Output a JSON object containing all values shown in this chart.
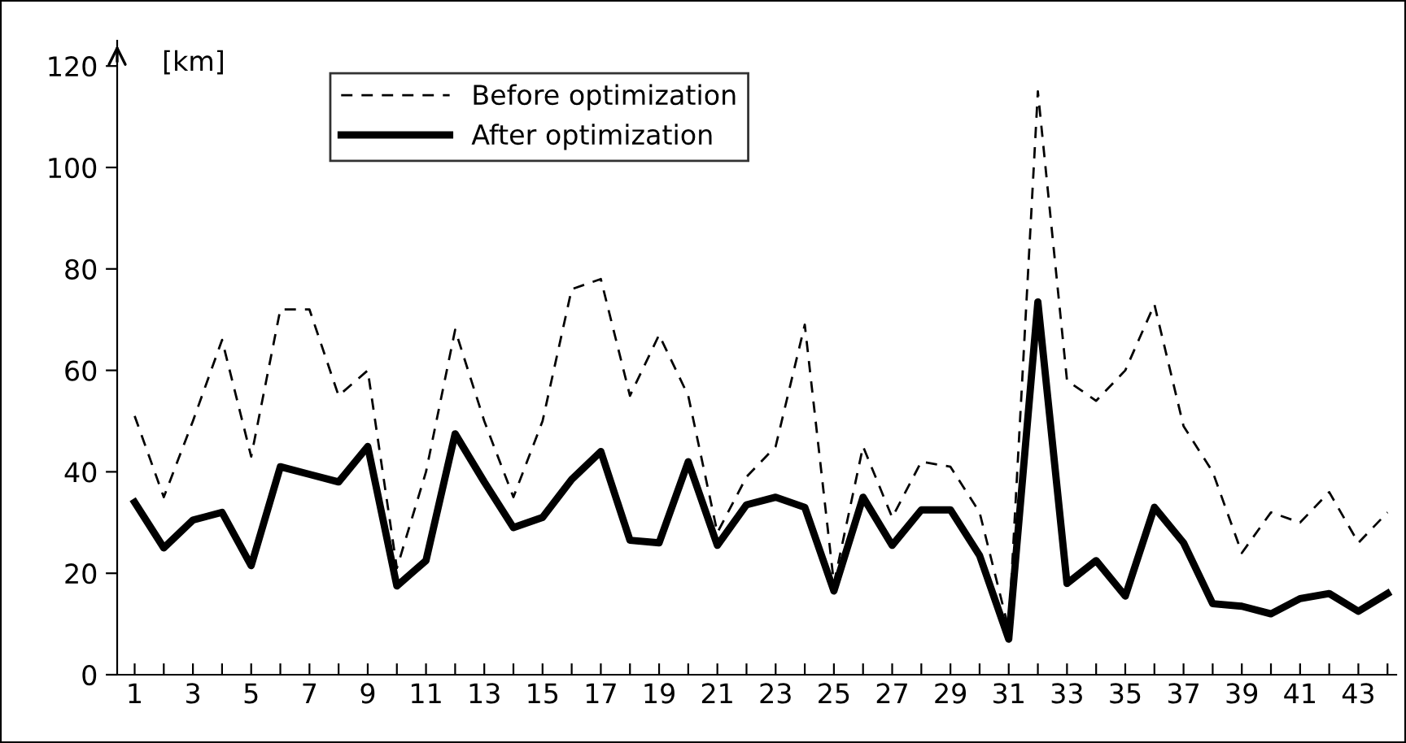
{
  "chart_data": {
    "type": "line",
    "ylabel": "[km]",
    "categories": [
      "1",
      null,
      "3",
      null,
      "5",
      null,
      "7",
      null,
      "9",
      null,
      "11",
      null,
      "13",
      null,
      "15",
      null,
      "17",
      null,
      "19",
      null,
      "21",
      null,
      "23",
      null,
      "25",
      null,
      "27",
      null,
      "29",
      null,
      "31",
      null,
      "33",
      null,
      "35",
      null,
      "37",
      null,
      "39",
      null,
      "41",
      null,
      "43",
      null
    ],
    "series": [
      {
        "name": "Before optimization",
        "color": "#000000",
        "line_style": "dashed",
        "values": [
          51,
          35,
          50,
          66,
          43,
          72,
          72,
          55,
          60,
          21,
          40,
          68,
          50,
          35,
          50,
          76,
          78,
          55,
          67,
          55,
          28,
          39,
          45,
          69,
          18,
          45,
          31,
          42,
          41,
          32,
          9,
          115,
          58,
          54,
          60,
          73,
          49,
          40,
          24,
          32,
          30,
          36,
          26,
          32
        ]
      },
      {
        "name": "After optimization",
        "color": "#000000",
        "line_style": "solid",
        "values": [
          34,
          25,
          30.5,
          32,
          21.5,
          41,
          39.5,
          38,
          45,
          17.5,
          22.5,
          47.5,
          38,
          29,
          31,
          38.5,
          44,
          26.5,
          26,
          42,
          25.5,
          33.5,
          35,
          33,
          16.5,
          35,
          25.5,
          32.5,
          32.5,
          23.5,
          7,
          73.5,
          18,
          22.5,
          15.5,
          33,
          26,
          14,
          13.5,
          12,
          15,
          16,
          12.5,
          16
        ]
      }
    ],
    "ylim": [
      0,
      125
    ],
    "yticks": [
      0,
      20,
      40,
      60,
      80,
      100,
      120
    ],
    "grid": false,
    "legend": "top",
    "marker": "none"
  }
}
